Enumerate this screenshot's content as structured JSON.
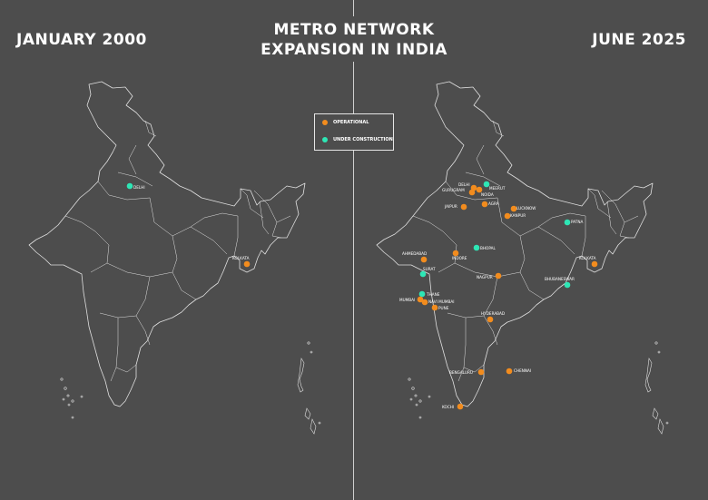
{
  "titles": {
    "left": "JANUARY 2000",
    "right": "JUNE 2025",
    "main_line1": "METRO NETWORK",
    "main_line2": "EXPANSION IN INDIA"
  },
  "legend": {
    "operational": "OPERATIONAL",
    "under_construction": "UNDER CONSTRUCTION"
  },
  "colors": {
    "operational": "#f28c1e",
    "under_construction": "#2ee6b5",
    "background": "#4d4d4d",
    "outline": "#e0e0e0"
  },
  "maps": {
    "january_2000": {
      "cities": [
        {
          "name": "DELHI",
          "status": "under_construction"
        },
        {
          "name": "KOLKATA",
          "status": "operational"
        }
      ]
    },
    "june_2025": {
      "cities": [
        {
          "name": "DELHI",
          "status": "operational"
        },
        {
          "name": "MEERUT",
          "status": "under_construction"
        },
        {
          "name": "GURUGRAM",
          "status": "operational"
        },
        {
          "name": "NOIDA",
          "status": "operational"
        },
        {
          "name": "AGRA",
          "status": "operational"
        },
        {
          "name": "LUCKNOW",
          "status": "operational"
        },
        {
          "name": "KANPUR",
          "status": "operational"
        },
        {
          "name": "JAIPUR",
          "status": "operational"
        },
        {
          "name": "PATNA",
          "status": "under_construction"
        },
        {
          "name": "AHMEDABAD",
          "status": "operational"
        },
        {
          "name": "BHOPAL",
          "status": "under_construction"
        },
        {
          "name": "INDORE",
          "status": "operational"
        },
        {
          "name": "KOLKATA",
          "status": "operational"
        },
        {
          "name": "SURAT",
          "status": "under_construction"
        },
        {
          "name": "NAGPUR",
          "status": "operational"
        },
        {
          "name": "BHUBANESWAR",
          "status": "under_construction"
        },
        {
          "name": "THANE",
          "status": "under_construction"
        },
        {
          "name": "MUMBAI",
          "status": "operational"
        },
        {
          "name": "NAVI MUMBAI",
          "status": "operational"
        },
        {
          "name": "PUNE",
          "status": "operational"
        },
        {
          "name": "HYDERABAD",
          "status": "operational"
        },
        {
          "name": "BENGALURU",
          "status": "operational"
        },
        {
          "name": "CHENNAI",
          "status": "operational"
        },
        {
          "name": "KOCHI",
          "status": "operational"
        }
      ]
    }
  }
}
